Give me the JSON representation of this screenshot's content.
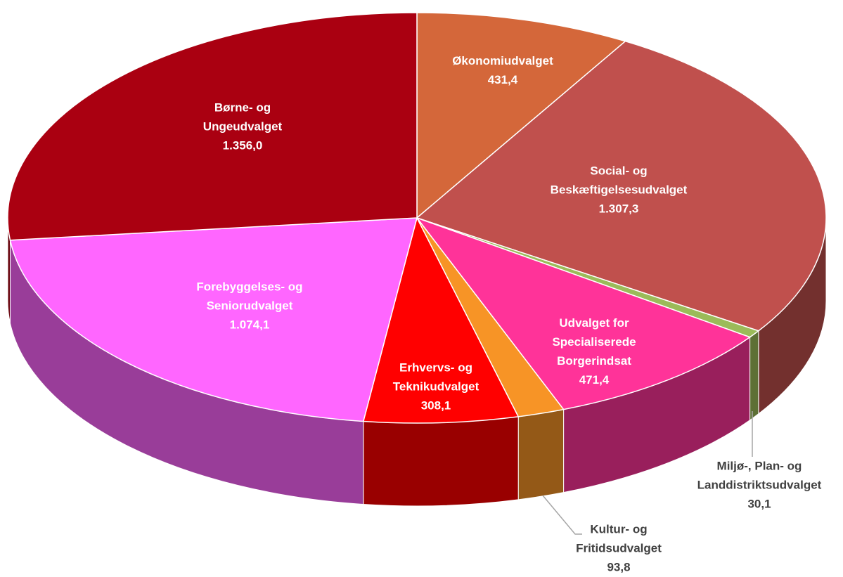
{
  "chart_data": {
    "type": "pie",
    "categories": [
      "Økonomiudvalget",
      "Social- og Beskæftigelsesudvalget",
      "Miljø-, Plan- og Landdistriktsudvalget",
      "Udvalget for Specialiserede Borgerindsat",
      "Kultur- og Fritidsudvalget",
      "Erhvervs- og Teknikudvalget",
      "Forebyggelses- og Seniorudvalget",
      "Børne- og Ungeudvalget"
    ],
    "values": [
      431.4,
      1307.3,
      30.1,
      471.4,
      93.8,
      308.1,
      1074.1,
      1356.0
    ],
    "value_labels": [
      "431,4",
      "1.307,3",
      "30,1",
      "471,4",
      "93,8",
      "308,1",
      "1.074,1",
      "1.356,0"
    ],
    "colors": [
      "#d4673a",
      "#c0504d",
      "#9bbb59",
      "#ff3399",
      "#f79426",
      "#ff0000",
      "#ff66ff",
      "#aa0011"
    ]
  }
}
